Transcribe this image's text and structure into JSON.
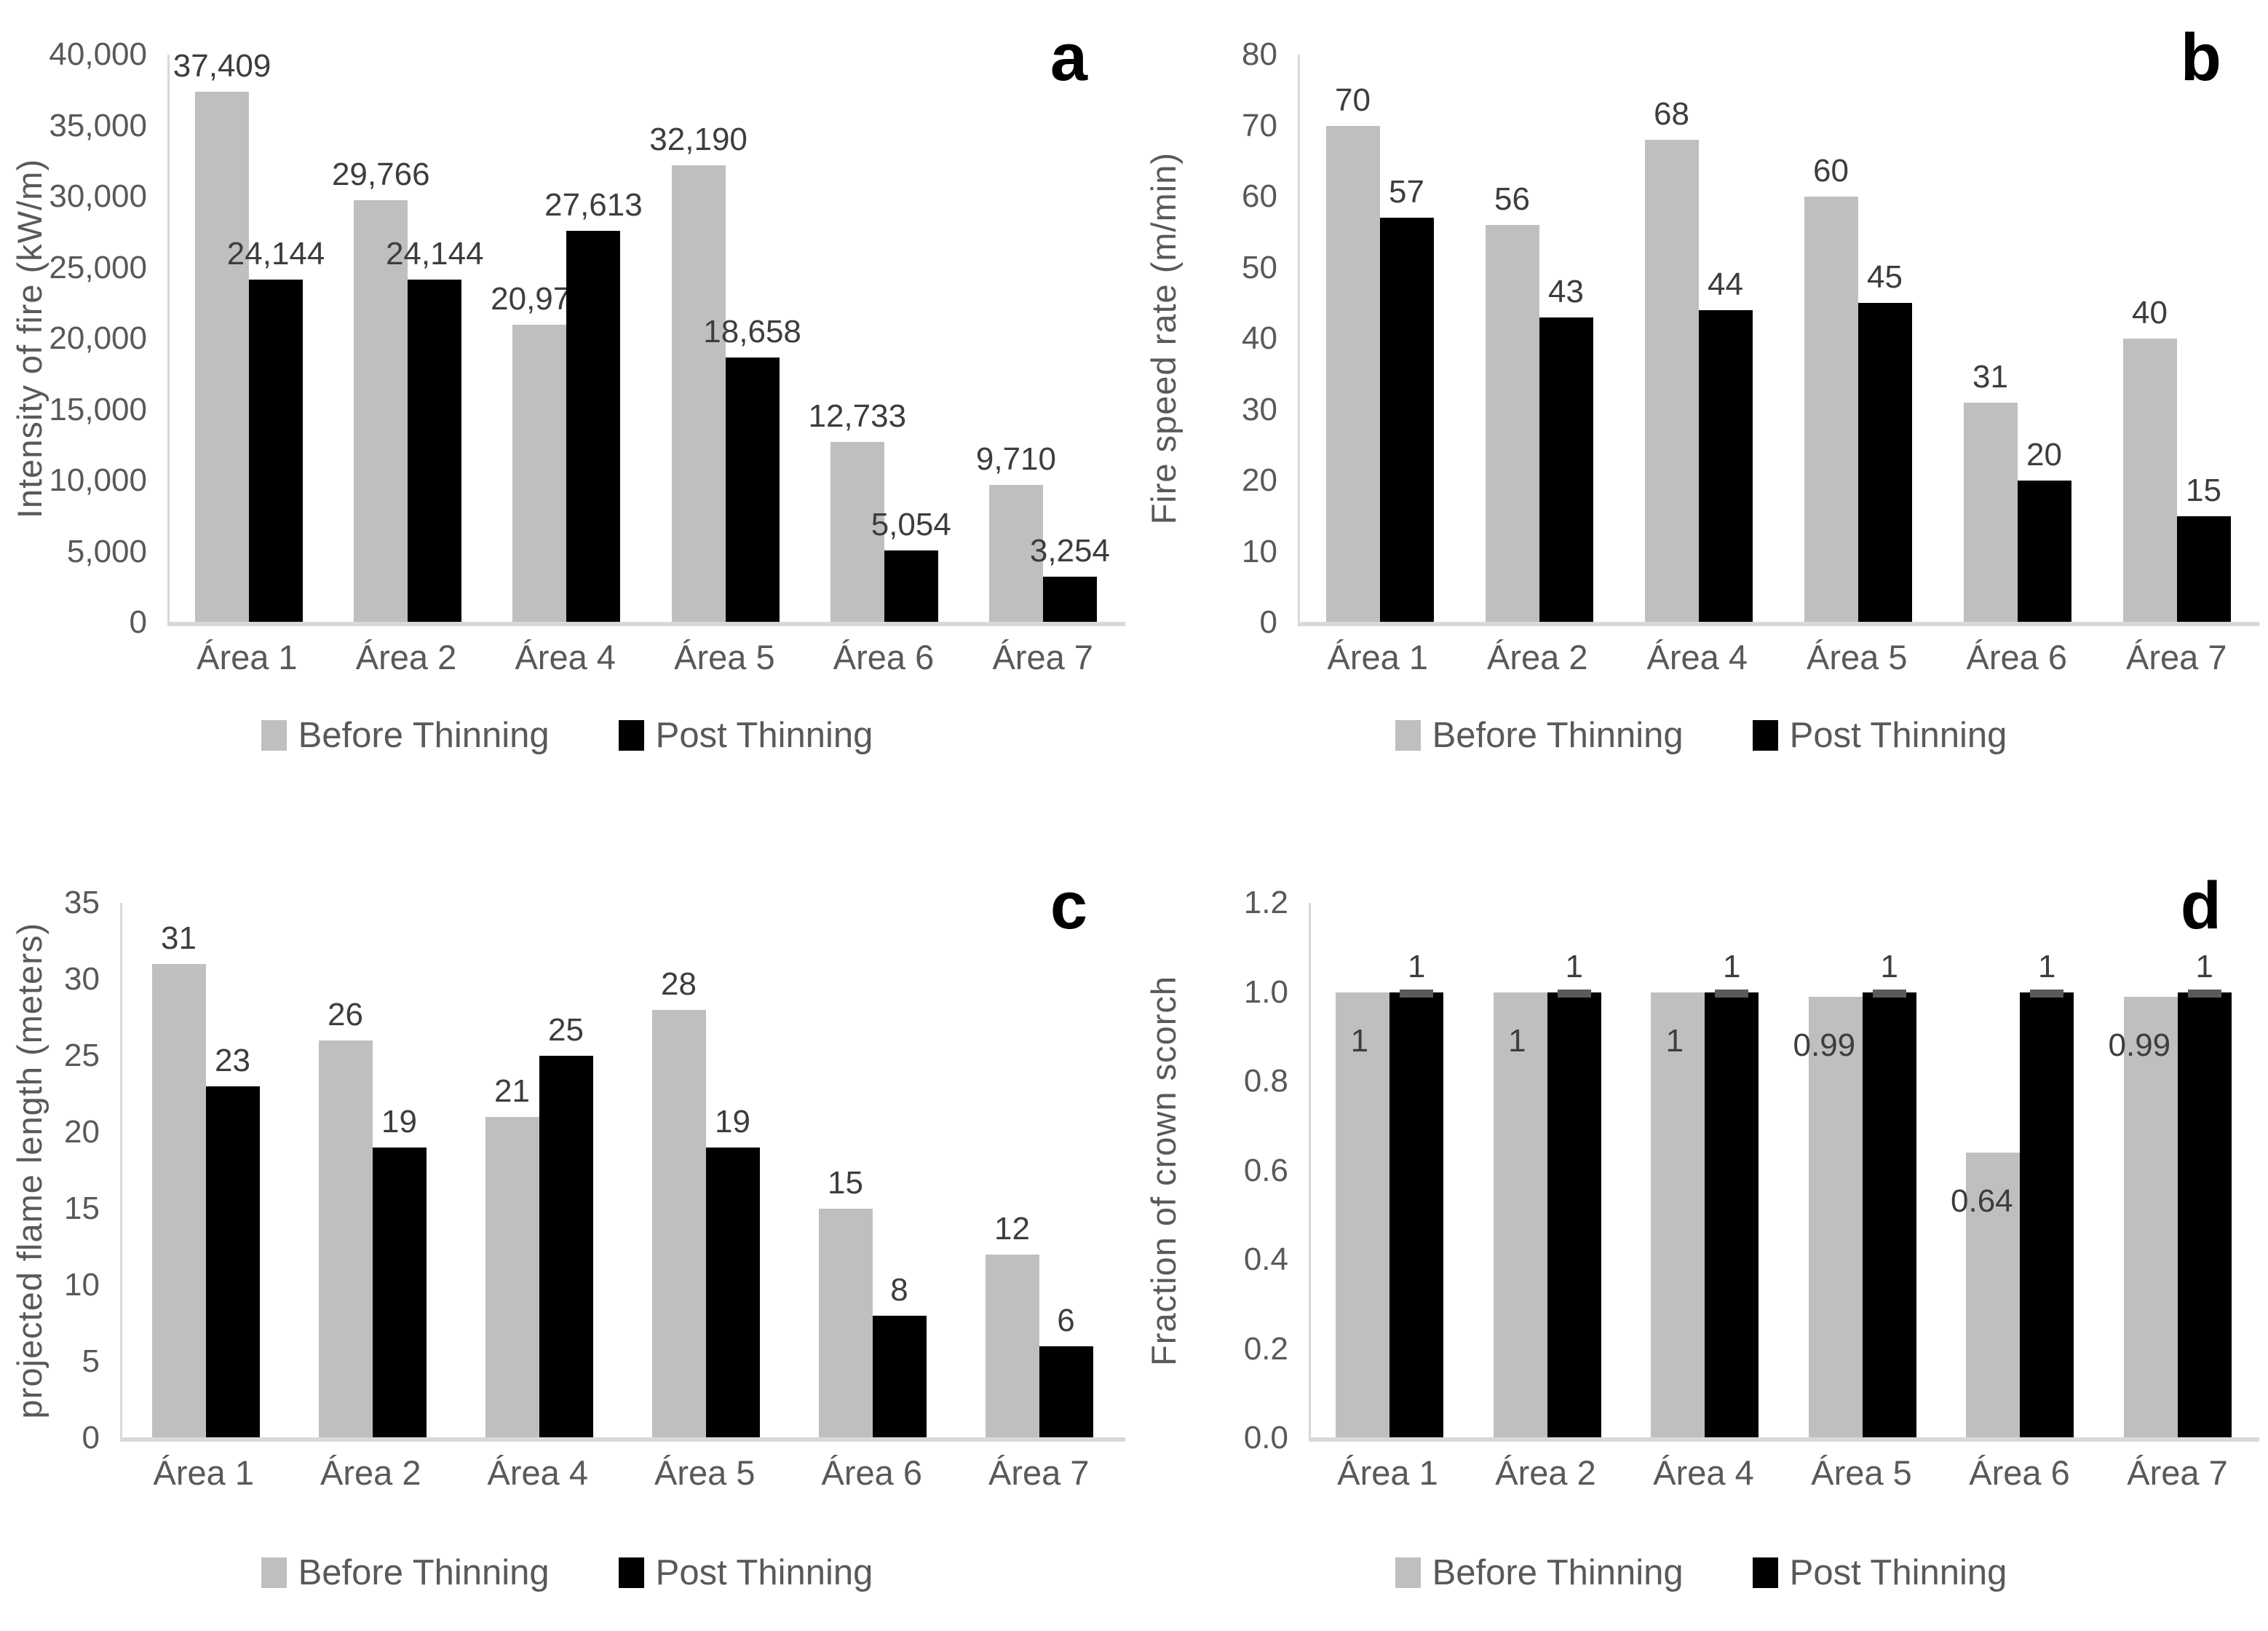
{
  "legend_labels": {
    "before": "Before Thinning",
    "post": "Post Thinning"
  },
  "colors": {
    "before": "#bfbfbf",
    "post": "#000000",
    "axis": "#d9d9d9",
    "tick_text": "#595959",
    "data_label": "#3d3d3d",
    "error_cap": "#5a5a5a"
  },
  "chart_data": [
    {
      "type": "bar",
      "panel_letter": "a",
      "ylabel": "Intensity of fire (kW/m)",
      "ymax": 40000,
      "ylim": [
        0,
        40000
      ],
      "grid": false,
      "legend_position": "bottom",
      "ytick_values": [
        0,
        5000,
        10000,
        15000,
        20000,
        25000,
        30000,
        35000,
        40000
      ],
      "ytick_labels": [
        "0",
        "5,000",
        "10,000",
        "15,000",
        "20,000",
        "25,000",
        "30,000",
        "35,000",
        "40,000"
      ],
      "categories": [
        "Área 1",
        "Área 2",
        "Área 4",
        "Área 5",
        "Área 6",
        "Área 7"
      ],
      "series": [
        {
          "name": "Before Thinning",
          "color": "#bfbfbf",
          "label_placement": "outside",
          "error_caps": false,
          "values": [
            37409,
            29766,
            20971,
            32190,
            12733,
            9710
          ],
          "labels": [
            "37,409",
            "29,766",
            "20,971",
            "32,190",
            "12,733",
            "9,710"
          ]
        },
        {
          "name": "Post Thinning",
          "color": "#000000",
          "label_placement": "outside",
          "error_caps": false,
          "values": [
            24144,
            24144,
            27613,
            18658,
            5054,
            3254
          ],
          "labels": [
            "24,144",
            "24,144",
            "27,613",
            "18,658",
            "5,054",
            "3,254"
          ]
        }
      ]
    },
    {
      "type": "bar",
      "panel_letter": "b",
      "ylabel": "Fire speed rate (m/min)",
      "ymax": 80,
      "ylim": [
        0,
        80
      ],
      "grid": false,
      "legend_position": "bottom",
      "ytick_values": [
        0,
        10,
        20,
        30,
        40,
        50,
        60,
        70,
        80
      ],
      "ytick_labels": [
        "0",
        "10",
        "20",
        "30",
        "40",
        "50",
        "60",
        "70",
        "80"
      ],
      "categories": [
        "Área 1",
        "Área 2",
        "Área 4",
        "Área 5",
        "Área 6",
        "Área 7"
      ],
      "series": [
        {
          "name": "Before Thinning",
          "color": "#bfbfbf",
          "label_placement": "outside",
          "error_caps": false,
          "values": [
            70,
            56,
            68,
            60,
            31,
            40
          ],
          "labels": [
            "70",
            "56",
            "68",
            "60",
            "31",
            "40"
          ]
        },
        {
          "name": "Post Thinning",
          "color": "#000000",
          "label_placement": "outside",
          "error_caps": false,
          "values": [
            57,
            43,
            44,
            45,
            20,
            15
          ],
          "labels": [
            "57",
            "43",
            "44",
            "45",
            "20",
            "15"
          ]
        }
      ]
    },
    {
      "type": "bar",
      "panel_letter": "c",
      "ylabel": "projected flame length (meters)",
      "ymax": 35,
      "ylim": [
        0,
        35
      ],
      "grid": false,
      "legend_position": "bottom",
      "ytick_values": [
        0,
        5,
        10,
        15,
        20,
        25,
        30,
        35
      ],
      "ytick_labels": [
        "0",
        "5",
        "10",
        "15",
        "20",
        "25",
        "30",
        "35"
      ],
      "categories": [
        "Área 1",
        "Área 2",
        "Área 4",
        "Área 5",
        "Área 6",
        "Área 7"
      ],
      "series": [
        {
          "name": "Before Thinning",
          "color": "#bfbfbf",
          "label_placement": "outside",
          "error_caps": false,
          "values": [
            31,
            26,
            21,
            28,
            15,
            12
          ],
          "labels": [
            "31",
            "26",
            "21",
            "28",
            "15",
            "12"
          ]
        },
        {
          "name": "Post Thinning",
          "color": "#000000",
          "label_placement": "outside",
          "error_caps": false,
          "values": [
            23,
            19,
            25,
            19,
            8,
            6
          ],
          "labels": [
            "23",
            "19",
            "25",
            "19",
            "8",
            "6"
          ]
        }
      ]
    },
    {
      "type": "bar",
      "panel_letter": "d",
      "ylabel": "Fraction of crown scorch",
      "ymax": 1.2,
      "ylim": [
        0,
        1.2
      ],
      "grid": false,
      "legend_position": "bottom",
      "ytick_values": [
        0,
        0.2,
        0.4,
        0.6,
        0.8,
        1.0,
        1.2
      ],
      "ytick_labels": [
        "0.0",
        "0.2",
        "0.4",
        "0.6",
        "0.8",
        "1.0",
        "1.2"
      ],
      "categories": [
        "Área 1",
        "Área 2",
        "Área 4",
        "Área 5",
        "Área 6",
        "Área 7"
      ],
      "series": [
        {
          "name": "Before Thinning",
          "color": "#bfbfbf",
          "label_placement": "inside",
          "error_caps": false,
          "values": [
            1,
            1,
            1,
            0.99,
            0.64,
            0.99
          ],
          "labels": [
            "1",
            "1",
            "1",
            "0.99",
            "0.64",
            "0.99"
          ]
        },
        {
          "name": "Post Thinning",
          "color": "#000000",
          "label_placement": "outside",
          "error_caps": true,
          "values": [
            1,
            1,
            1,
            1,
            1,
            1
          ],
          "labels": [
            "1",
            "1",
            "1",
            "1",
            "1",
            "1"
          ]
        }
      ]
    }
  ]
}
